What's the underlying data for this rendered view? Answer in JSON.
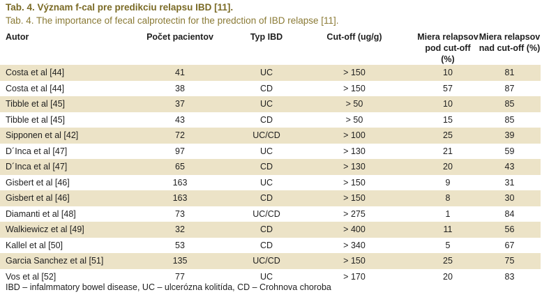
{
  "title": "Tab. 4. Význam f-cal pre predikciu relapsu IBD [11].",
  "subtitle": "Tab. 4. The importance of fecal calprotectin for the predction of IBD relapse [11].",
  "headers": [
    {
      "line1": "Autor",
      "line2": ""
    },
    {
      "line1": "Počet pacientov",
      "line2": ""
    },
    {
      "line1": "Typ IBD",
      "line2": ""
    },
    {
      "line1": "Cut-off (ug/g)",
      "line2": ""
    },
    {
      "line1": "Miera relapsov",
      "line2": "pod cut-off (%)"
    },
    {
      "line1": "Miera relapsov",
      "line2": "nad cut-off (%)"
    }
  ],
  "rows": [
    [
      "Costa et al [44]",
      "41",
      "UC",
      "> 150",
      "10",
      "81"
    ],
    [
      "Costa et al [44]",
      "38",
      "CD",
      "> 150",
      "57",
      "87"
    ],
    [
      "Tibble et al [45]",
      "37",
      "UC",
      "> 50",
      "10",
      "85"
    ],
    [
      "Tibble et al [45]",
      "43",
      "CD",
      "> 50",
      "15",
      "85"
    ],
    [
      "Sipponen et al [42]",
      "72",
      "UC/CD",
      "> 100",
      "25",
      "39"
    ],
    [
      "D´Inca et al [47]",
      "97",
      "UC",
      "> 130",
      "21",
      "59"
    ],
    [
      "D´Inca et al [47]",
      "65",
      "CD",
      "> 130",
      "20",
      "43"
    ],
    [
      "Gisbert et al [46]",
      "163",
      "UC",
      "> 150",
      "9",
      "31"
    ],
    [
      "Gisbert et al [46]",
      "163",
      "CD",
      "> 150",
      "8",
      "30"
    ],
    [
      "Diamanti et al [48]",
      "73",
      "UC/CD",
      "> 275",
      "1",
      "84"
    ],
    [
      "Walkiewicz et al [49]",
      "32",
      "CD",
      "> 400",
      "11",
      "56"
    ],
    [
      "Kallel et al [50]",
      "53",
      "CD",
      "> 340",
      "5",
      "67"
    ],
    [
      "Garcia Sanchez et al [51]",
      "135",
      "UC/CD",
      "> 150",
      "25",
      "75"
    ],
    [
      "Vos et al [52]",
      "77",
      "UC",
      "> 170",
      "20",
      "83"
    ]
  ],
  "footnote": "IBD – infalmmatory bowel disease, UC – ulcerózna kolitída, CD – Crohnova choroba",
  "colors": {
    "title": "#7a6a25",
    "stripe": "#ece3c7"
  }
}
